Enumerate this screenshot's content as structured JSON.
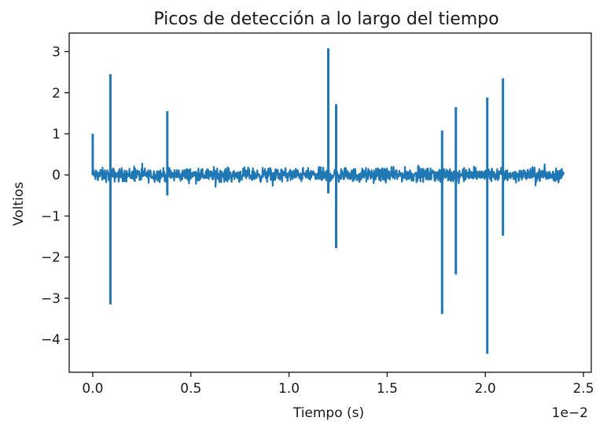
{
  "chart_data": {
    "type": "line",
    "title": "Picos de detección a lo largo del tiempo",
    "xlabel": "Tiempo (s)",
    "ylabel": "Voltios",
    "x_offset_label": "1e−2",
    "xlim": [
      -0.12,
      2.54
    ],
    "ylim": [
      -4.8,
      3.45
    ],
    "x_ticks": [
      0.0,
      0.5,
      1.0,
      1.5,
      2.0,
      2.5
    ],
    "x_tick_labels": [
      "0.0",
      "0.5",
      "1.0",
      "1.5",
      "2.0",
      "2.5"
    ],
    "y_ticks": [
      3,
      2,
      1,
      0,
      -1,
      -2,
      -3,
      -4
    ],
    "y_tick_labels": [
      "3",
      "2",
      "1",
      "0",
      "−1",
      "−2",
      "−3",
      "−4"
    ],
    "grid": false,
    "series": [
      {
        "color": "#1f77b4",
        "x_range": [
          0.0,
          2.4
        ],
        "noise_amplitude": 0.3,
        "spikes": [
          {
            "x": 0.0,
            "max": 1.0,
            "min": 0.0
          },
          {
            "x": 0.09,
            "max": 2.45,
            "min": -3.15
          },
          {
            "x": 0.38,
            "max": 1.55,
            "min": -0.5
          },
          {
            "x": 1.2,
            "max": 3.08,
            "min": -0.45
          },
          {
            "x": 1.24,
            "max": 1.72,
            "min": -1.78
          },
          {
            "x": 1.78,
            "max": 1.08,
            "min": -3.38
          },
          {
            "x": 1.85,
            "max": 1.65,
            "min": -2.42
          },
          {
            "x": 2.01,
            "max": 1.88,
            "min": -4.35
          },
          {
            "x": 2.09,
            "max": 2.35,
            "min": -1.48
          }
        ]
      }
    ]
  }
}
